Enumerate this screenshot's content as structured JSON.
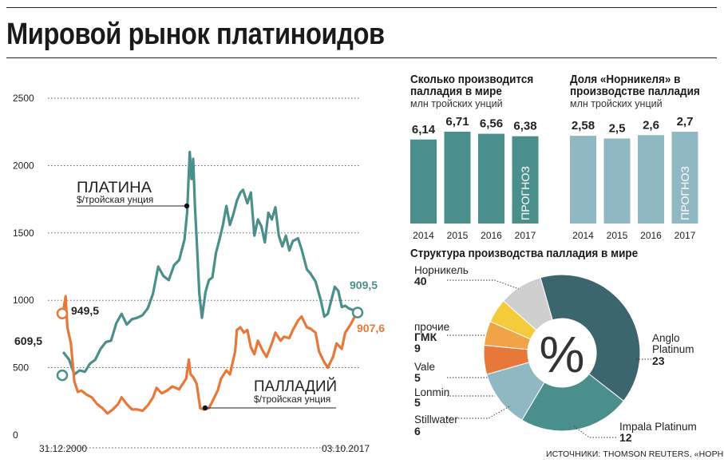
{
  "title": "Мировой рынок платиноидов",
  "source": "ИСТОЧНИКИ: THOMSON REUTERS, «НОРНИКЕЛЬ»",
  "chart_data": [
    {
      "type": "line",
      "yticks": [
        "2500",
        "2000",
        "1500",
        "1000",
        "500",
        "0"
      ],
      "ylim": [
        0,
        2500
      ],
      "x_start_label": "31.12.2000",
      "x_end_label": "03.10.2017",
      "colors": {
        "platinum": "#4a8f8b",
        "palladium": "#e8773a"
      },
      "series": [
        {
          "key": "platinum",
          "name": "ПЛАТИНА",
          "unit": "$/тройская унция",
          "start_label": "609,5",
          "end_label": "909,5",
          "start_value": 609.5,
          "end_value": 909.5,
          "points": [
            [
              2001.0,
              609.5
            ],
            [
              2001.3,
              560
            ],
            [
              2001.6,
              450
            ],
            [
              2001.9,
              480
            ],
            [
              2002.2,
              470
            ],
            [
              2002.5,
              530
            ],
            [
              2002.8,
              560
            ],
            [
              2003.1,
              640
            ],
            [
              2003.4,
              690
            ],
            [
              2003.7,
              700
            ],
            [
              2004.0,
              830
            ],
            [
              2004.3,
              900
            ],
            [
              2004.6,
              820
            ],
            [
              2004.9,
              860
            ],
            [
              2005.2,
              870
            ],
            [
              2005.5,
              890
            ],
            [
              2005.8,
              940
            ],
            [
              2006.1,
              1050
            ],
            [
              2006.4,
              1250
            ],
            [
              2006.7,
              1180
            ],
            [
              2007.0,
              1150
            ],
            [
              2007.3,
              1260
            ],
            [
              2007.6,
              1300
            ],
            [
              2007.9,
              1450
            ],
            [
              2008.05,
              1650
            ],
            [
              2008.2,
              2100
            ],
            [
              2008.3,
              1900
            ],
            [
              2008.4,
              2050
            ],
            [
              2008.5,
              1700
            ],
            [
              2008.6,
              1450
            ],
            [
              2008.75,
              1050
            ],
            [
              2008.9,
              870
            ],
            [
              2009.1,
              1060
            ],
            [
              2009.3,
              1150
            ],
            [
              2009.5,
              1170
            ],
            [
              2009.7,
              1350
            ],
            [
              2009.9,
              1450
            ],
            [
              2010.1,
              1560
            ],
            [
              2010.3,
              1700
            ],
            [
              2010.5,
              1560
            ],
            [
              2010.7,
              1640
            ],
            [
              2010.9,
              1740
            ],
            [
              2011.1,
              1800
            ],
            [
              2011.25,
              1820
            ],
            [
              2011.5,
              1720
            ],
            [
              2011.7,
              1800
            ],
            [
              2011.9,
              1480
            ],
            [
              2012.1,
              1600
            ],
            [
              2012.3,
              1550
            ],
            [
              2012.5,
              1430
            ],
            [
              2012.7,
              1650
            ],
            [
              2012.9,
              1600
            ],
            [
              2013.1,
              1690
            ],
            [
              2013.3,
              1480
            ],
            [
              2013.5,
              1400
            ],
            [
              2013.7,
              1480
            ],
            [
              2013.9,
              1370
            ],
            [
              2014.1,
              1440
            ],
            [
              2014.4,
              1460
            ],
            [
              2014.6,
              1380
            ],
            [
              2014.9,
              1230
            ],
            [
              2015.1,
              1200
            ],
            [
              2015.4,
              1140
            ],
            [
              2015.7,
              1000
            ],
            [
              2015.9,
              880
            ],
            [
              2016.1,
              900
            ],
            [
              2016.3,
              1000
            ],
            [
              2016.5,
              1100
            ],
            [
              2016.7,
              1070
            ],
            [
              2016.9,
              950
            ],
            [
              2017.1,
              960
            ],
            [
              2017.3,
              940
            ],
            [
              2017.5,
              930
            ],
            [
              2017.76,
              909.5
            ]
          ]
        },
        {
          "key": "palladium",
          "name": "ПАЛЛАДИЙ",
          "unit": "$/тройская унция",
          "start_label": "949,5",
          "end_label": "907,6",
          "start_value": 949.5,
          "end_value": 907.6,
          "points": [
            [
              2001.0,
              949.5
            ],
            [
              2001.1,
              1030
            ],
            [
              2001.2,
              800
            ],
            [
              2001.4,
              680
            ],
            [
              2001.6,
              400
            ],
            [
              2001.8,
              320
            ],
            [
              2002.0,
              330
            ],
            [
              2002.3,
              300
            ],
            [
              2002.6,
              280
            ],
            [
              2002.9,
              230
            ],
            [
              2003.2,
              200
            ],
            [
              2003.5,
              160
            ],
            [
              2003.8,
              190
            ],
            [
              2004.1,
              230
            ],
            [
              2004.3,
              280
            ],
            [
              2004.6,
              230
            ],
            [
              2004.9,
              190
            ],
            [
              2005.2,
              190
            ],
            [
              2005.5,
              180
            ],
            [
              2005.8,
              220
            ],
            [
              2006.1,
              280
            ],
            [
              2006.3,
              350
            ],
            [
              2006.6,
              310
            ],
            [
              2006.9,
              330
            ],
            [
              2007.2,
              360
            ],
            [
              2007.4,
              350
            ],
            [
              2007.6,
              340
            ],
            [
              2007.8,
              380
            ],
            [
              2008.0,
              420
            ],
            [
              2008.15,
              560
            ],
            [
              2008.25,
              450
            ],
            [
              2008.4,
              430
            ],
            [
              2008.6,
              380
            ],
            [
              2008.8,
              200
            ],
            [
              2009.0,
              190
            ],
            [
              2009.3,
              200
            ],
            [
              2009.5,
              250
            ],
            [
              2009.8,
              330
            ],
            [
              2010.0,
              420
            ],
            [
              2010.3,
              480
            ],
            [
              2010.5,
              450
            ],
            [
              2010.8,
              620
            ],
            [
              2010.9,
              780
            ],
            [
              2011.1,
              800
            ],
            [
              2011.3,
              760
            ],
            [
              2011.5,
              780
            ],
            [
              2011.7,
              650
            ],
            [
              2011.9,
              600
            ],
            [
              2012.1,
              700
            ],
            [
              2012.4,
              620
            ],
            [
              2012.6,
              580
            ],
            [
              2012.9,
              680
            ],
            [
              2013.1,
              760
            ],
            [
              2013.4,
              700
            ],
            [
              2013.6,
              730
            ],
            [
              2013.9,
              720
            ],
            [
              2014.1,
              780
            ],
            [
              2014.4,
              850
            ],
            [
              2014.6,
              880
            ],
            [
              2014.9,
              800
            ],
            [
              2015.1,
              790
            ],
            [
              2015.4,
              760
            ],
            [
              2015.6,
              620
            ],
            [
              2015.9,
              540
            ],
            [
              2016.1,
              500
            ],
            [
              2016.4,
              580
            ],
            [
              2016.6,
              680
            ],
            [
              2016.9,
              640
            ],
            [
              2017.1,
              760
            ],
            [
              2017.4,
              820
            ],
            [
              2017.76,
              907.6
            ]
          ]
        }
      ]
    },
    {
      "type": "bar",
      "title": "Сколько производится палладия в мире",
      "unit": "млн тройских унций",
      "categories": [
        "2014",
        "2015",
        "2016",
        "2017"
      ],
      "values": [
        6.14,
        6.71,
        6.56,
        6.38
      ],
      "value_labels": [
        "6,14",
        "6,71",
        "6,56",
        "6,38"
      ],
      "forecast_label": "ПРОГНОЗ",
      "color": "#4a8f8b"
    },
    {
      "type": "bar",
      "title": "Доля «Норникеля» в производстве палладия",
      "unit": "млн тройских унций",
      "categories": [
        "2014",
        "2015",
        "2016",
        "2017"
      ],
      "values": [
        2.58,
        2.5,
        2.6,
        2.7
      ],
      "value_labels": [
        "2,58",
        "2,5",
        "2,6",
        "2,7"
      ],
      "forecast_label": "ПРОГНОЗ",
      "color": "#8fb8c2"
    },
    {
      "type": "pie",
      "title": "Структура производства палладия в мире",
      "center_label": "%",
      "slices": [
        {
          "name": "Норникель",
          "value": 40,
          "color": "#3b666e"
        },
        {
          "name": "Anglo Platinum",
          "value": 23,
          "color": "#4a8f8b"
        },
        {
          "name": "Impala Platinum",
          "value": 12,
          "color": "#8fb8c2"
        },
        {
          "name": "Stillwater",
          "value": 6,
          "color": "#e8773a"
        },
        {
          "name": "Lonmin",
          "value": 5,
          "color": "#f0a447"
        },
        {
          "name": "Vale",
          "value": 5,
          "color": "#f4cb3a"
        },
        {
          "name": "прочие",
          "name_line2": "ГМК",
          "value": 9,
          "color": "#cfcfcf"
        }
      ]
    }
  ]
}
